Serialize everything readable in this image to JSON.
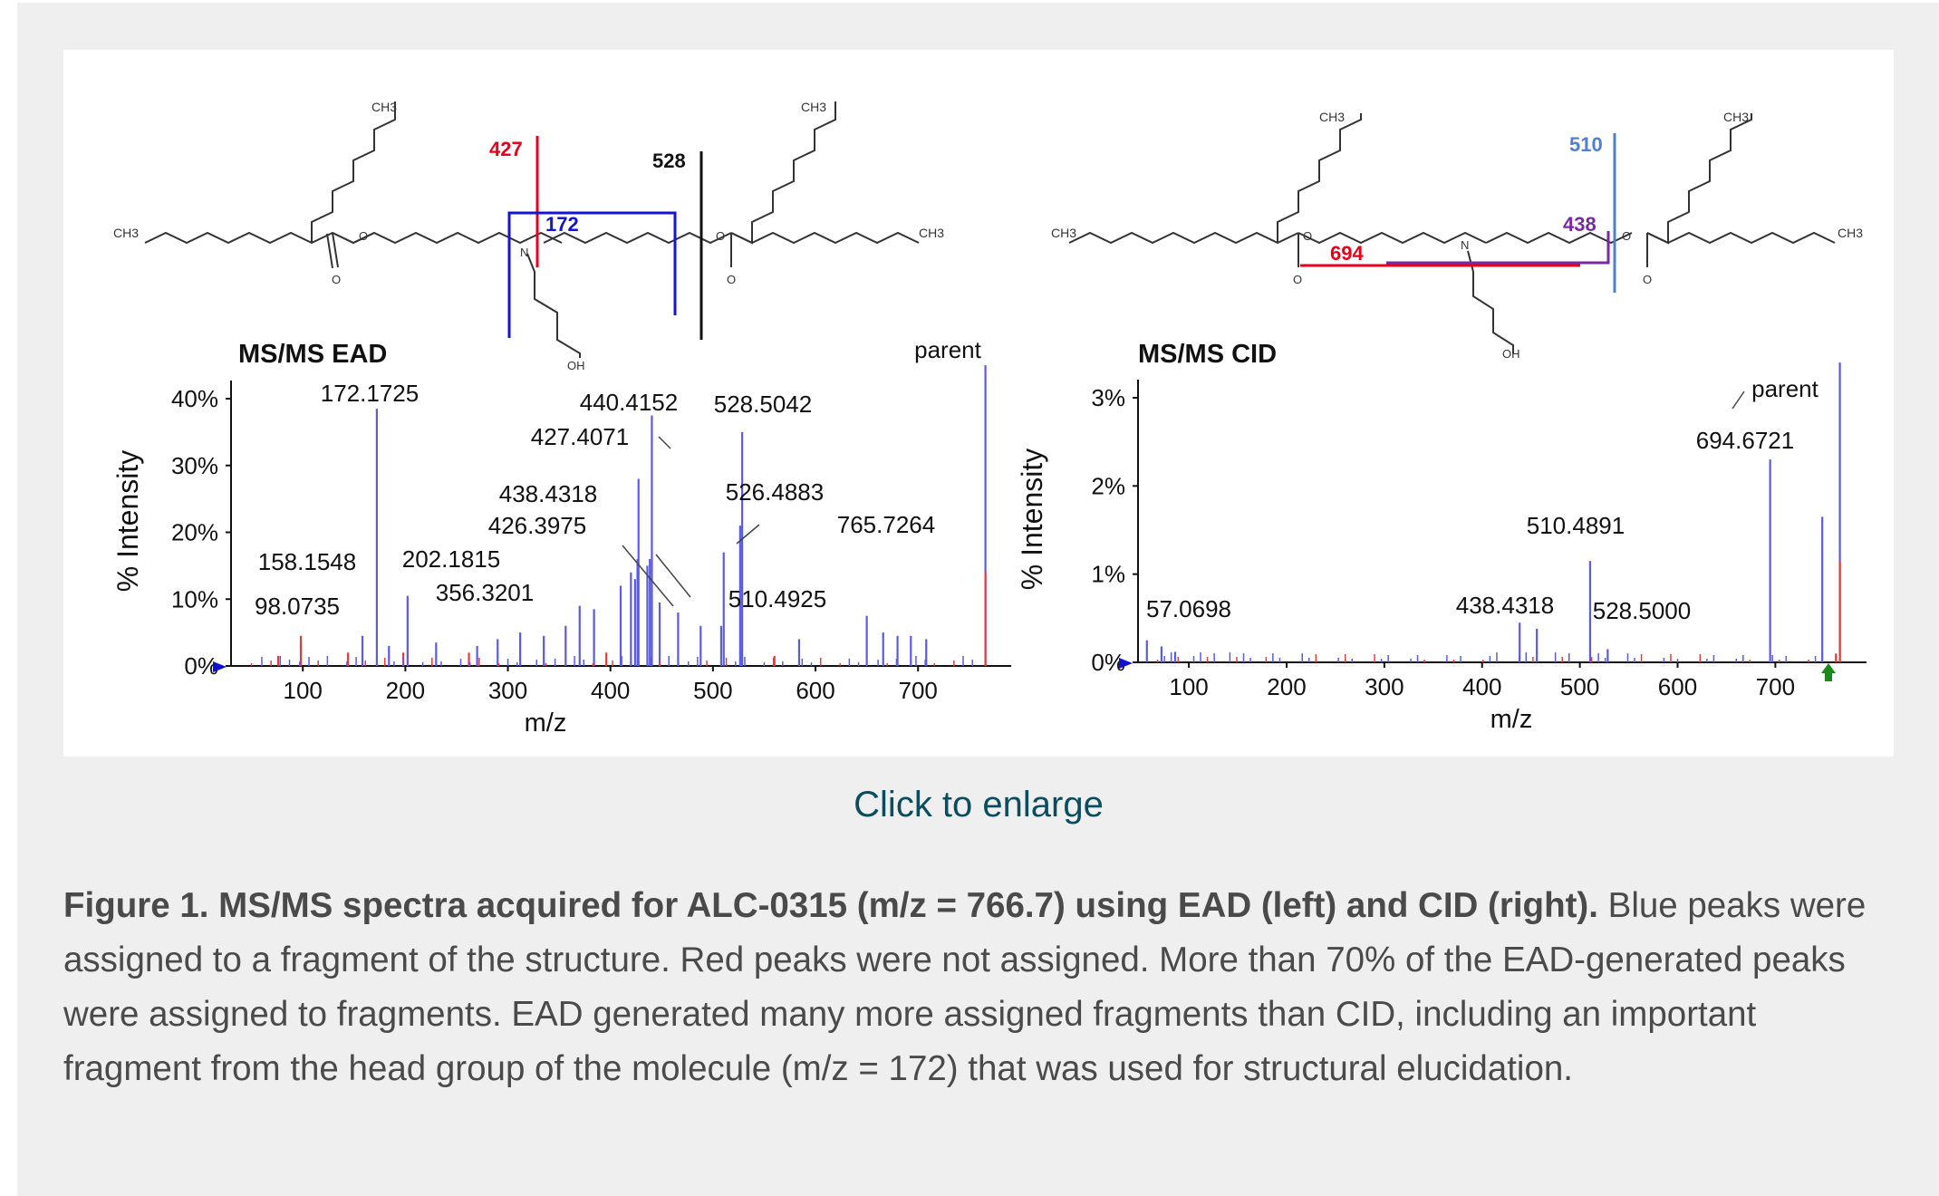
{
  "link": {
    "enlarge_label": "Click to enlarge"
  },
  "caption": {
    "title": "Figure 1. MS/MS spectra acquired for ALC-0315 (m/z = 766.7) using EAD (left) and CID (right).",
    "body": " Blue peaks were assigned to a fragment of the structure. Red peaks were not assigned. More than 70% of the EAD-generated peaks were assigned to fragments. EAD generated many more assigned fragments than CID, including an important fragment from the head group of the molecule (m/z = 172) that was used for structural elucidation."
  },
  "structure_labels": {
    "ch3": "CH3",
    "o": "O",
    "n": "N",
    "oh": "OH",
    "ead_cuts": [
      "427",
      "528",
      "172"
    ],
    "cid_cuts": [
      "510",
      "438",
      "694"
    ]
  },
  "colors": {
    "assigned": "#5a5ae6",
    "unassigned": "#e63a3a",
    "cut_427": "#e8001c",
    "cut_172": "#1414d2",
    "cut_510": "#4f7fcf",
    "cut_438": "#7a2aa0",
    "cut_694": "#e8001c",
    "marker_left": "#1010d0",
    "marker_right": "#1a8a1a"
  },
  "chart_data": [
    {
      "type": "bar",
      "title": "MS/MS EAD",
      "xlabel": "m/z",
      "ylabel": "% Intensity",
      "xlim": [
        30,
        782
      ],
      "ylim": [
        0,
        40
      ],
      "xticks": [
        100,
        200,
        300,
        400,
        500,
        600,
        700
      ],
      "yticks": [
        0,
        10,
        20,
        30,
        40
      ],
      "ytick_labels": [
        "0%",
        "10%",
        "20%",
        "30%",
        "40%"
      ],
      "grid": false,
      "parent_label": "parent",
      "series": [
        {
          "name": "assigned",
          "peaks": [
            {
              "mz": 98.07,
              "y": 3.5
            },
            {
              "mz": 158.15,
              "y": 4.5
            },
            {
              "mz": 172.17,
              "y": 38.5
            },
            {
              "mz": 184,
              "y": 3
            },
            {
              "mz": 202.18,
              "y": 10.5
            },
            {
              "mz": 230,
              "y": 3.5
            },
            {
              "mz": 270,
              "y": 3
            },
            {
              "mz": 290,
              "y": 4
            },
            {
              "mz": 312,
              "y": 5
            },
            {
              "mz": 335,
              "y": 4.5
            },
            {
              "mz": 356.32,
              "y": 6
            },
            {
              "mz": 370,
              "y": 9
            },
            {
              "mz": 384,
              "y": 8.5
            },
            {
              "mz": 410,
              "y": 12
            },
            {
              "mz": 420,
              "y": 14
            },
            {
              "mz": 424,
              "y": 13
            },
            {
              "mz": 426.4,
              "y": 16
            },
            {
              "mz": 427.41,
              "y": 28
            },
            {
              "mz": 436,
              "y": 15
            },
            {
              "mz": 438.43,
              "y": 16
            },
            {
              "mz": 440.42,
              "y": 37.5
            },
            {
              "mz": 448,
              "y": 9.5
            },
            {
              "mz": 466,
              "y": 8
            },
            {
              "mz": 488,
              "y": 6
            },
            {
              "mz": 508,
              "y": 6
            },
            {
              "mz": 510.49,
              "y": 17
            },
            {
              "mz": 526.49,
              "y": 21
            },
            {
              "mz": 528.5,
              "y": 35
            },
            {
              "mz": 584,
              "y": 4
            },
            {
              "mz": 650,
              "y": 7.5
            },
            {
              "mz": 666,
              "y": 5
            },
            {
              "mz": 680,
              "y": 4.5
            },
            {
              "mz": 693,
              "y": 4.5
            },
            {
              "mz": 708,
              "y": 4
            },
            {
              "mz": 765.73,
              "y": 45
            }
          ]
        },
        {
          "name": "unassigned",
          "peaks": [
            {
              "mz": 98.07,
              "y": 4.5
            },
            {
              "mz": 76,
              "y": 1.5
            },
            {
              "mz": 144,
              "y": 2
            },
            {
              "mz": 198,
              "y": 2
            },
            {
              "mz": 262,
              "y": 2
            },
            {
              "mz": 396,
              "y": 2
            },
            {
              "mz": 560,
              "y": 1.5
            },
            {
              "mz": 765.73,
              "y": 14
            }
          ]
        }
      ],
      "labels": [
        "172.1725",
        "440.4152",
        "528.5042",
        "427.4071",
        "438.4318",
        "426.3975",
        "526.4883",
        "765.7264",
        "158.1548",
        "202.1815",
        "356.3201",
        "98.0735",
        "510.4925"
      ]
    },
    {
      "type": "bar",
      "title": "MS/MS CID",
      "xlabel": "m/z",
      "ylabel": "% Intensity",
      "xlim": [
        48,
        784
      ],
      "ylim": [
        0,
        3
      ],
      "xticks": [
        100,
        200,
        300,
        400,
        500,
        600,
        700
      ],
      "yticks": [
        0,
        1,
        2,
        3
      ],
      "ytick_labels": [
        "0%",
        "1%",
        "2%",
        "3%"
      ],
      "grid": false,
      "parent_label": "parent",
      "series": [
        {
          "name": "assigned",
          "peaks": [
            {
              "mz": 57.07,
              "y": 0.25
            },
            {
              "mz": 72,
              "y": 0.18
            },
            {
              "mz": 86,
              "y": 0.12
            },
            {
              "mz": 438.43,
              "y": 0.45
            },
            {
              "mz": 456,
              "y": 0.38
            },
            {
              "mz": 510.49,
              "y": 1.15
            },
            {
              "mz": 528.5,
              "y": 0.15
            },
            {
              "mz": 694.67,
              "y": 2.3
            },
            {
              "mz": 748,
              "y": 1.65
            },
            {
              "mz": 766,
              "y": 3.4
            }
          ]
        },
        {
          "name": "unassigned",
          "peaks": [
            {
              "mz": 766,
              "y": 1.15
            },
            {
              "mz": 762,
              "y": 0.1
            }
          ]
        }
      ],
      "labels": [
        "57.0698",
        "438.4318",
        "510.4891",
        "528.5000",
        "694.6721"
      ]
    }
  ]
}
